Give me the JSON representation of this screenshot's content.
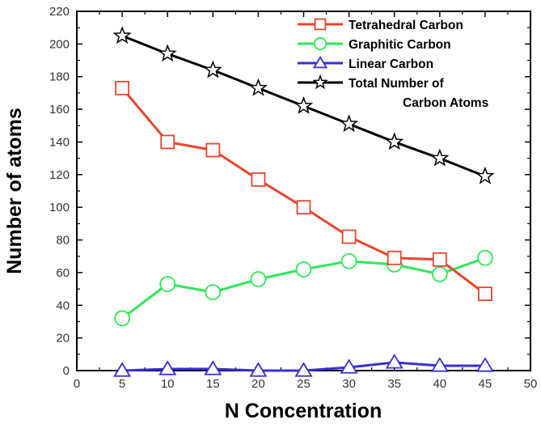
{
  "chart_data": {
    "type": "line",
    "title": "",
    "xlabel": "N Concentration",
    "ylabel": "Number of atoms",
    "xlim": [
      0,
      50
    ],
    "ylim": [
      0,
      220
    ],
    "xticks": [
      0,
      5,
      10,
      15,
      20,
      25,
      30,
      35,
      40,
      45,
      50
    ],
    "yticks": [
      0,
      20,
      40,
      60,
      80,
      100,
      120,
      140,
      160,
      180,
      200,
      220
    ],
    "grid": false,
    "legend_position": "top-right",
    "x": [
      5,
      10,
      15,
      20,
      25,
      30,
      35,
      40,
      45
    ],
    "series": [
      {
        "name": "Tetrahedral Carbon",
        "marker": "square",
        "color": "#e8452c",
        "values": [
          173,
          140,
          135,
          117,
          100,
          82,
          69,
          68,
          47
        ]
      },
      {
        "name": "Graphitic Carbon",
        "marker": "circle",
        "color": "#2ee85a",
        "values": [
          32,
          53,
          48,
          56,
          62,
          67,
          65,
          59,
          69
        ]
      },
      {
        "name": "Linear Carbon",
        "marker": "triangle",
        "color": "#3a2fd0",
        "values": [
          0,
          1,
          1,
          0,
          0,
          2,
          5,
          3,
          3
        ]
      },
      {
        "name": "Total Number of Carbon Atoms",
        "marker": "star",
        "color": "#000000",
        "values": [
          205,
          194,
          184,
          173,
          162,
          151,
          140,
          130,
          119
        ]
      }
    ],
    "legend_lines": [
      [
        "Tetrahedral Carbon"
      ],
      [
        "Graphitic Carbon"
      ],
      [
        "Linear Carbon"
      ],
      [
        "Total Number of",
        "Carbon Atoms"
      ]
    ]
  }
}
